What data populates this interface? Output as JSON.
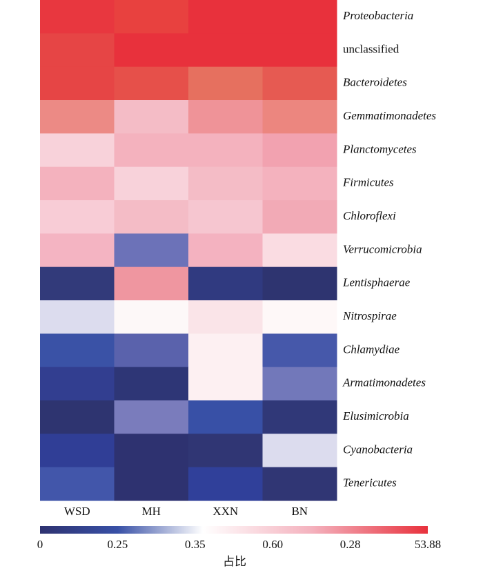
{
  "chart_data": {
    "type": "heatmap",
    "columns": [
      "WSD",
      "MH",
      "XXN",
      "BN"
    ],
    "rows": [
      "Proteobacteria",
      "unclassified",
      "Bacteroidetes",
      "Gemmatimonadetes",
      "Planctomycetes",
      "Firmicutes",
      "Chloroflexi",
      "Verrucomicrobia",
      "Lentisphaerae",
      "Nitrospirae",
      "Chlamydiae",
      "Armatimonadetes",
      "Elusimicrobia",
      "Cyanobacteria",
      "Tenericutes"
    ],
    "italic_rows": [
      true,
      false,
      true,
      true,
      true,
      true,
      true,
      true,
      true,
      true,
      true,
      true,
      true,
      true,
      true
    ],
    "colors": [
      [
        "#e8373f",
        "#e8413f",
        "#e8313c",
        "#e8313c"
      ],
      [
        "#e64545",
        "#e8313c",
        "#e8313c",
        "#e8313c"
      ],
      [
        "#e64545",
        "#e6504a",
        "#e6705f",
        "#e65a52"
      ],
      [
        "#ec8a85",
        "#f4bcc6",
        "#ef9398",
        "#ec867f"
      ],
      [
        "#f8d2da",
        "#f4b2be",
        "#f4b2be",
        "#f2a2b0"
      ],
      [
        "#f4b2be",
        "#f8d2da",
        "#f4bcc6",
        "#f4b2be"
      ],
      [
        "#f8ccd6",
        "#f4bcc6",
        "#f6c6d0",
        "#f2aab6"
      ],
      [
        "#f4b4c2",
        "#6c72b8",
        "#f4b2c0",
        "#fadce2"
      ],
      [
        "#323a7a",
        "#ef96a0",
        "#303a80",
        "#2e3470"
      ],
      [
        "#dcdcee",
        "#fdf8f8",
        "#fae4e8",
        "#fef8f8"
      ],
      [
        "#3a52a6",
        "#5a62ac",
        "#fdf0f2",
        "#4658aa"
      ],
      [
        "#323e90",
        "#2e3676",
        "#fdf0f2",
        "#7278ba"
      ],
      [
        "#2e3470",
        "#7a7cbc",
        "#3850a6",
        "#303878"
      ],
      [
        "#303e96",
        "#2e3270",
        "#303674",
        "#dcdcee"
      ],
      [
        "#4256aa",
        "#2e3270",
        "#30409a",
        "#303674"
      ]
    ],
    "colorbar_labels": [
      "0",
      "0.25",
      "0.35",
      "0.60",
      "0.28",
      "53.88"
    ],
    "colorbar_title": "占比"
  }
}
